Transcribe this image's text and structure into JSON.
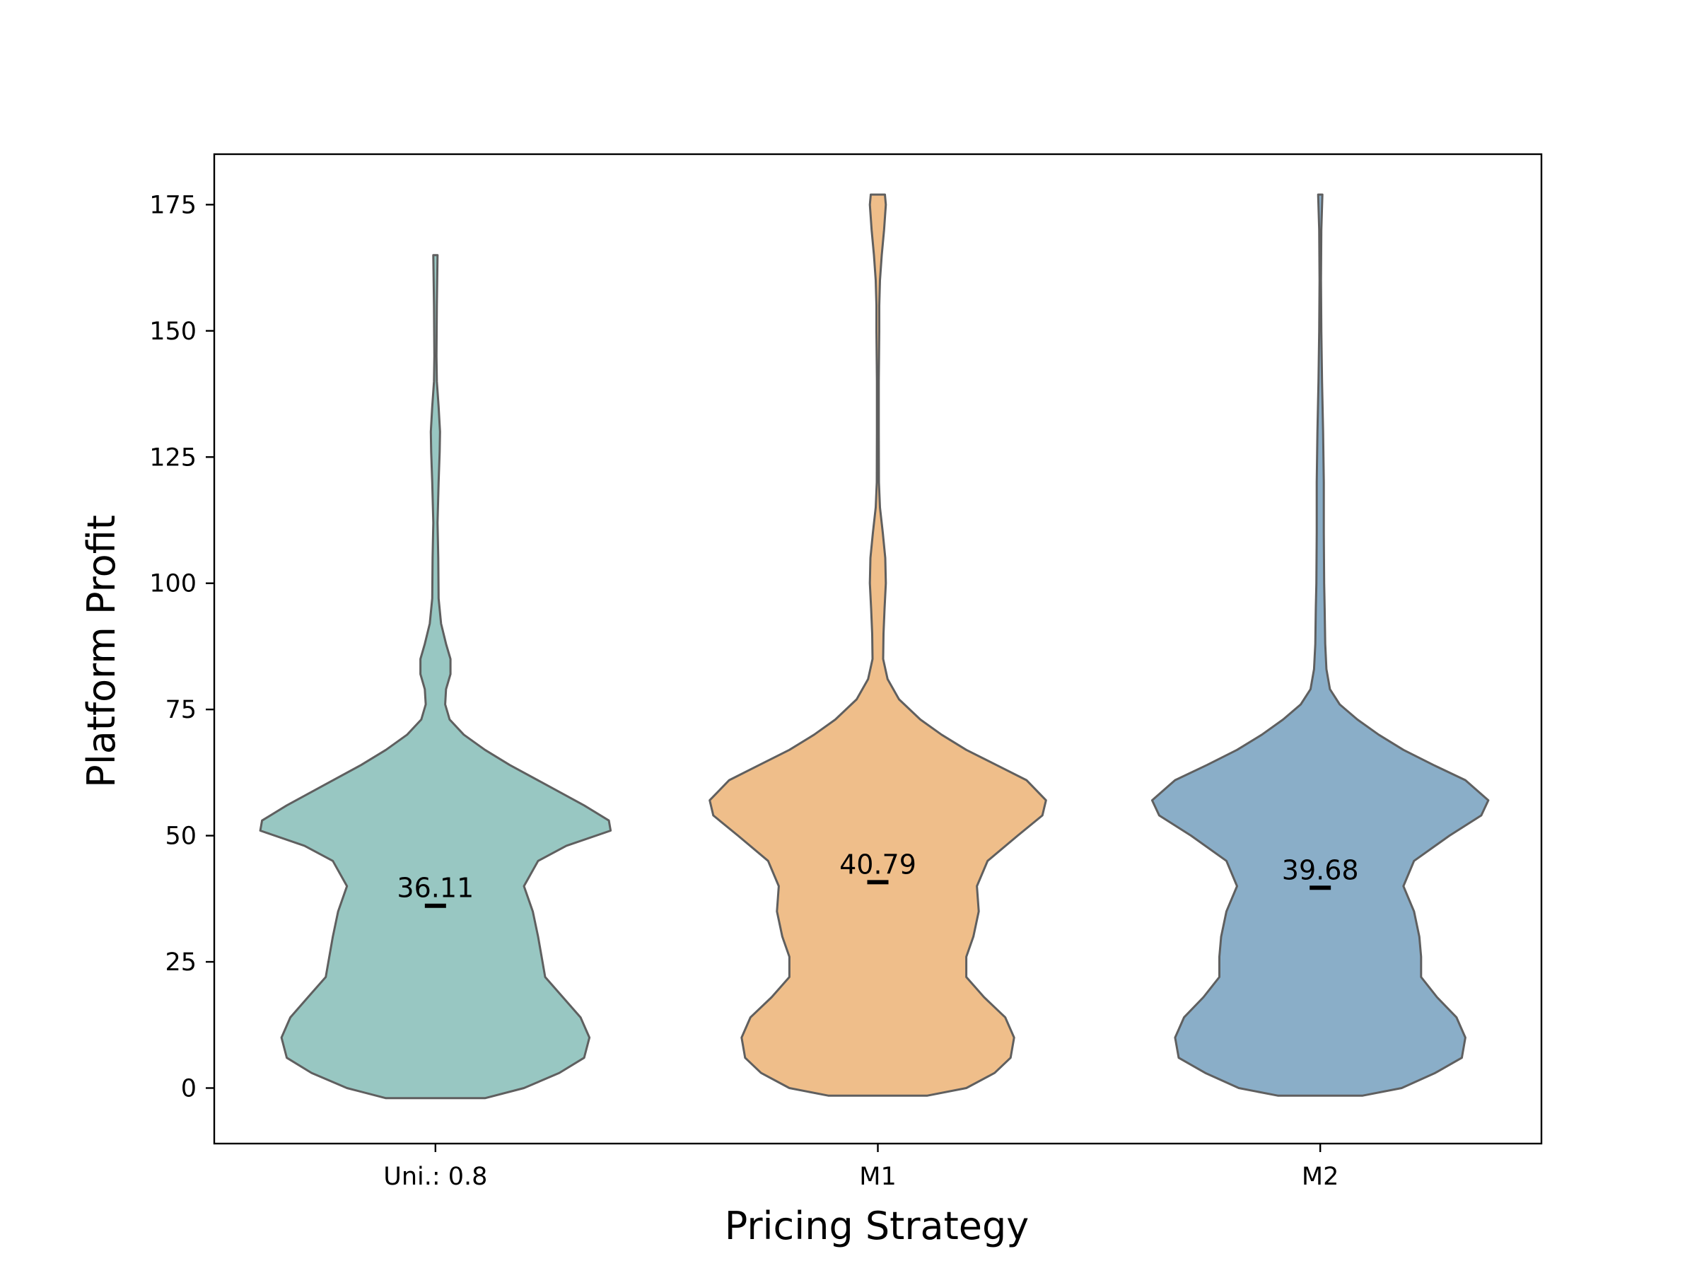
{
  "chart_data": {
    "type": "violin",
    "title": "",
    "xlabel": "Pricing Strategy",
    "ylabel": "Platform Profit",
    "categories": [
      "Uni.: 0.8",
      "M1",
      "M2"
    ],
    "ylim": [
      -11,
      185
    ],
    "yticks": [
      0,
      25,
      50,
      75,
      100,
      125,
      150,
      175
    ],
    "grid": false,
    "outline_color": "#5f5f5f",
    "mean_marker_color": "#000000",
    "series": [
      {
        "category": "Uni.: 0.8",
        "color": "#98c7c2",
        "mean": 36.11,
        "mean_label": "36.11",
        "min": -2,
        "max": 165,
        "density": [
          [
            -2,
            0.28
          ],
          [
            0,
            0.5
          ],
          [
            3,
            0.7
          ],
          [
            6,
            0.84
          ],
          [
            10,
            0.87
          ],
          [
            14,
            0.82
          ],
          [
            18,
            0.72
          ],
          [
            22,
            0.62
          ],
          [
            26,
            0.6
          ],
          [
            30,
            0.58
          ],
          [
            35,
            0.55
          ],
          [
            40,
            0.5
          ],
          [
            45,
            0.58
          ],
          [
            48,
            0.74
          ],
          [
            51,
            0.99
          ],
          [
            53,
            0.98
          ],
          [
            56,
            0.84
          ],
          [
            60,
            0.63
          ],
          [
            64,
            0.42
          ],
          [
            67,
            0.28
          ],
          [
            70,
            0.16
          ],
          [
            73,
            0.08
          ],
          [
            76,
            0.055
          ],
          [
            79,
            0.06
          ],
          [
            82,
            0.085
          ],
          [
            85,
            0.085
          ],
          [
            88,
            0.06
          ],
          [
            92,
            0.032
          ],
          [
            97,
            0.018
          ],
          [
            105,
            0.016
          ],
          [
            112,
            0.012
          ],
          [
            120,
            0.018
          ],
          [
            126,
            0.024
          ],
          [
            130,
            0.026
          ],
          [
            135,
            0.018
          ],
          [
            140,
            0.008
          ],
          [
            145,
            0.006
          ],
          [
            155,
            0.008
          ],
          [
            165,
            0.012
          ]
        ]
      },
      {
        "category": "M1",
        "color": "#efbe8a",
        "mean": 40.79,
        "mean_label": "40.79",
        "min": -1.5,
        "max": 177,
        "density": [
          [
            -1.5,
            0.28
          ],
          [
            0,
            0.5
          ],
          [
            3,
            0.66
          ],
          [
            6,
            0.75
          ],
          [
            10,
            0.77
          ],
          [
            14,
            0.72
          ],
          [
            18,
            0.6
          ],
          [
            22,
            0.5
          ],
          [
            26,
            0.5
          ],
          [
            30,
            0.54
          ],
          [
            35,
            0.57
          ],
          [
            40,
            0.56
          ],
          [
            45,
            0.62
          ],
          [
            50,
            0.79
          ],
          [
            54,
            0.93
          ],
          [
            57,
            0.95
          ],
          [
            61,
            0.84
          ],
          [
            64,
            0.67
          ],
          [
            67,
            0.5
          ],
          [
            70,
            0.36
          ],
          [
            73,
            0.24
          ],
          [
            77,
            0.12
          ],
          [
            81,
            0.055
          ],
          [
            85,
            0.03
          ],
          [
            90,
            0.032
          ],
          [
            95,
            0.038
          ],
          [
            100,
            0.045
          ],
          [
            105,
            0.042
          ],
          [
            110,
            0.028
          ],
          [
            115,
            0.012
          ],
          [
            120,
            0.006
          ],
          [
            130,
            0.005
          ],
          [
            140,
            0.005
          ],
          [
            150,
            0.008
          ],
          [
            155,
            0.008
          ],
          [
            160,
            0.012
          ],
          [
            165,
            0.022
          ],
          [
            170,
            0.035
          ],
          [
            175,
            0.045
          ],
          [
            177,
            0.04
          ]
        ]
      },
      {
        "category": "M2",
        "color": "#8aaec8",
        "mean": 39.68,
        "mean_label": "39.68",
        "min": -1.5,
        "max": 177,
        "density": [
          [
            -1.5,
            0.24
          ],
          [
            0,
            0.46
          ],
          [
            3,
            0.65
          ],
          [
            6,
            0.8
          ],
          [
            10,
            0.82
          ],
          [
            14,
            0.77
          ],
          [
            18,
            0.66
          ],
          [
            22,
            0.57
          ],
          [
            26,
            0.57
          ],
          [
            30,
            0.56
          ],
          [
            35,
            0.53
          ],
          [
            40,
            0.47
          ],
          [
            45,
            0.53
          ],
          [
            50,
            0.73
          ],
          [
            54,
            0.91
          ],
          [
            57,
            0.95
          ],
          [
            61,
            0.82
          ],
          [
            64,
            0.64
          ],
          [
            67,
            0.47
          ],
          [
            70,
            0.33
          ],
          [
            73,
            0.21
          ],
          [
            76,
            0.11
          ],
          [
            79,
            0.055
          ],
          [
            83,
            0.035
          ],
          [
            88,
            0.028
          ],
          [
            95,
            0.025
          ],
          [
            100,
            0.022
          ],
          [
            110,
            0.02
          ],
          [
            120,
            0.02
          ],
          [
            130,
            0.016
          ],
          [
            140,
            0.01
          ],
          [
            150,
            0.006
          ],
          [
            160,
            0.004
          ],
          [
            170,
            0.006
          ],
          [
            177,
            0.012
          ]
        ]
      }
    ]
  }
}
